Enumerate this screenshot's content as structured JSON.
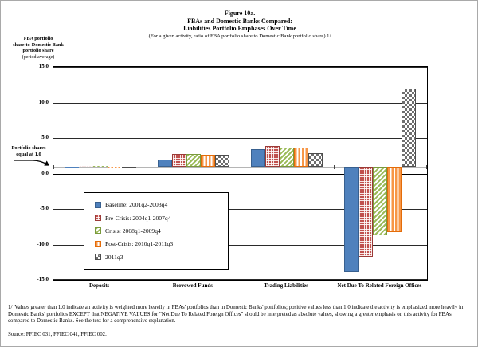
{
  "figure": {
    "title_line1": "Figure 10a.",
    "title_line2": "FBAs and Domestic Banks Compared:",
    "title_line3": "Liabilities Portfolio Emphases Over Time",
    "subtitle": "(For a given activity, ratio of FBA portfolio share to Domestic Bank portfolio share) 1/"
  },
  "y_axis_title": {
    "line1": "FBA portfolio",
    "line2": "share-to-Domestic Bank",
    "line3": "portfolio share",
    "line4": "(period average)"
  },
  "annotation": {
    "line1": "Portfolio shares",
    "line2": "equal at 1.0"
  },
  "footnote": {
    "marker": "1/",
    "text": "Values greater than 1.0 indicate an activity is weighted more heavily in FBAs' portfolios than in Domestic Banks' portfolios; positive values less than 1.0 indicate the activity is emphasized more heavily in Domestic Banks' portfolios EXCEPT that NEGATIVE VALUES for \"Net Due To Related Foreign Offices\" should be interpreted as absolute values, showing a greater emphasis on this activity for FBAs compared to Domestic Banks.  See the text for a comprehensive explanation."
  },
  "source": "Source: FFIEC 031, FFIEC 041, FFIEC 002.",
  "chart_data": {
    "type": "bar",
    "title": "Figure 10a. FBAs and Domestic Banks Compared: Liabilities Portfolio Emphases Over Time",
    "subtitle": "(For a given activity, ratio of FBA portfolio share to Domestic Bank portfolio share) 1/",
    "ylabel": "FBA portfolio share-to-Domestic Bank portfolio share (period average)",
    "xlabel": "",
    "categories": [
      "Deposits",
      "Borrowed Funds",
      "Trading Liabilities",
      "Net Due To Related Foreign Offices"
    ],
    "series": [
      {
        "name": "Baseline: 2001q2-2003q4",
        "values": [
          1.0,
          2.0,
          3.4,
          -13.9
        ],
        "color": "#4F81BD",
        "border": "#38608F",
        "pattern": "solid"
      },
      {
        "name": "Pre-Crisis: 2004q1-2007q4",
        "values": [
          1.1,
          2.7,
          3.9,
          -11.7
        ],
        "color": "#C0504D",
        "border": "#9C3B38",
        "pattern": "grid"
      },
      {
        "name": "Crisis: 2008q1-2009q4",
        "values": [
          1.1,
          2.7,
          3.7,
          -8.7
        ],
        "color": "#9BBB59",
        "border": "#7A9A3D",
        "pattern": "diagonal"
      },
      {
        "name": "Post-Crisis: 2010q1-2011q3",
        "values": [
          1.0,
          2.6,
          3.6,
          -8.3
        ],
        "color": "#F79646",
        "border": "#E36C09",
        "pattern": "vertical"
      },
      {
        "name": "2011q3",
        "values": [
          0.7,
          2.6,
          2.9,
          12.0
        ],
        "color": "#6E6E6E",
        "border": "#4D4D4D",
        "pattern": "checkerboard"
      }
    ],
    "baseline": 1.0,
    "ylim": [
      -15.0,
      15.0
    ],
    "yticks": [
      15.0,
      10.0,
      5.0,
      0.0,
      -5.0,
      -10.0,
      -15.0
    ],
    "grid": true,
    "legend_position": "inside-lower-left"
  }
}
